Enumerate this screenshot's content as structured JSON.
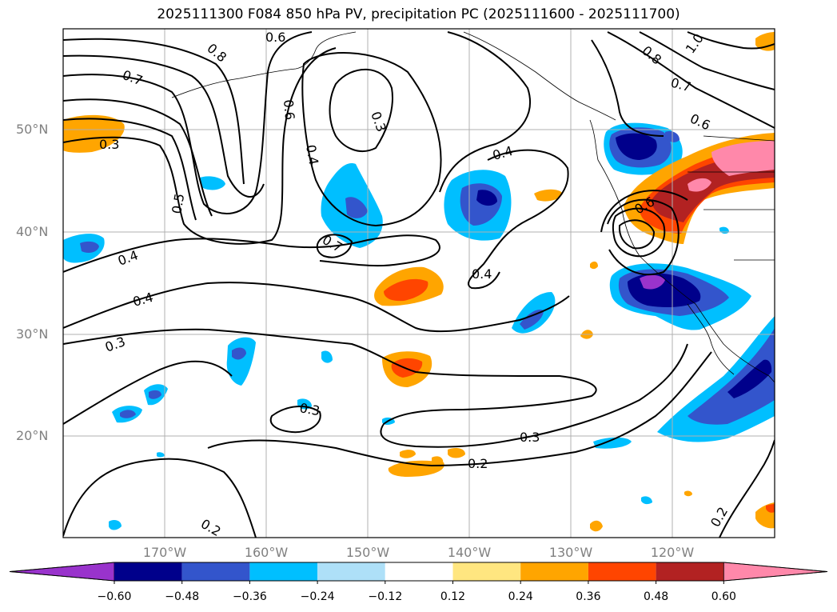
{
  "title": "2025111300 F084 850 hPa PV, precipitation PC (2025111600 - 2025111700)",
  "map": {
    "lat_labels": [
      "50°N",
      "40°N",
      "30°N",
      "20°N"
    ],
    "lon_labels": [
      "170°W",
      "160°W",
      "150°W",
      "140°W",
      "130°W",
      "120°W"
    ],
    "contour_labels": [
      "0.8",
      "0.6",
      "0.7",
      "0.3",
      "0.6",
      "0.3",
      "0.4",
      "0.5",
      "0.4",
      "0.7",
      "0.4",
      "0.4",
      "0.4",
      "0.3",
      "0.3",
      "0.3",
      "0.2",
      "0.2",
      "0.8",
      "1.0",
      "0.7",
      "0.6",
      "0.6",
      "0.2"
    ]
  },
  "colorbar": {
    "colors": [
      "#9933cc",
      "#00008b",
      "#3355cc",
      "#00bfff",
      "#aee0f8",
      "#ffffff",
      "#ffe680",
      "#ffa500",
      "#ff4500",
      "#b22222",
      "#ff88aa"
    ],
    "ticks": [
      "−0.60",
      "−0.48",
      "−0.36",
      "−0.24",
      "−0.12",
      "0.12",
      "0.24",
      "0.36",
      "0.48",
      "0.60"
    ]
  }
}
